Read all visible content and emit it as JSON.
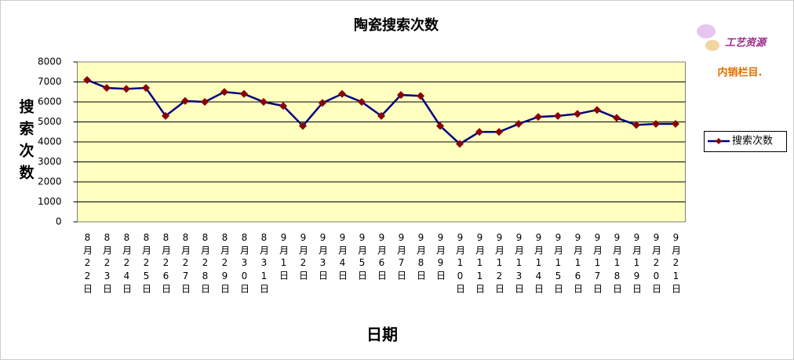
{
  "chart_data": {
    "type": "line",
    "title": "陶瓷搜索次数",
    "x_label": "日期",
    "y_label": "搜索次数",
    "categories": [
      "8月22日",
      "8月23日",
      "8月24日",
      "8月25日",
      "8月26日",
      "8月27日",
      "8月28日",
      "8月29日",
      "8月30日",
      "8月31日",
      "9月1日",
      "9月2日",
      "9月3日",
      "9月4日",
      "9月5日",
      "9月6日",
      "9月7日",
      "9月8日",
      "9月9日",
      "9月10日",
      "9月11日",
      "9月12日",
      "9月13日",
      "9月14日",
      "9月15日",
      "9月16日",
      "9月17日",
      "9月18日",
      "9月19日",
      "9月20日",
      "9月21日"
    ],
    "series": [
      {
        "name": "搜索次数",
        "color": "#000080",
        "marker_color": "#8b0000",
        "values": [
          7100,
          6700,
          6650,
          6700,
          5300,
          6050,
          6000,
          6500,
          6400,
          6000,
          5800,
          4800,
          5950,
          6400,
          6000,
          5300,
          6350,
          6300,
          4800,
          3900,
          4500,
          4500,
          4900,
          5250,
          5300,
          5400,
          5600,
          5200,
          4850,
          4900,
          4900
        ]
      }
    ],
    "ylim": [
      0,
      8000
    ],
    "yticks": [
      0,
      1000,
      2000,
      3000,
      4000,
      5000,
      6000,
      7000,
      8000
    ],
    "grid": true,
    "legend": "right",
    "plot_background": "#ffffc0"
  },
  "logo": {
    "name": "工艺资源",
    "caption": "内销栏目."
  }
}
